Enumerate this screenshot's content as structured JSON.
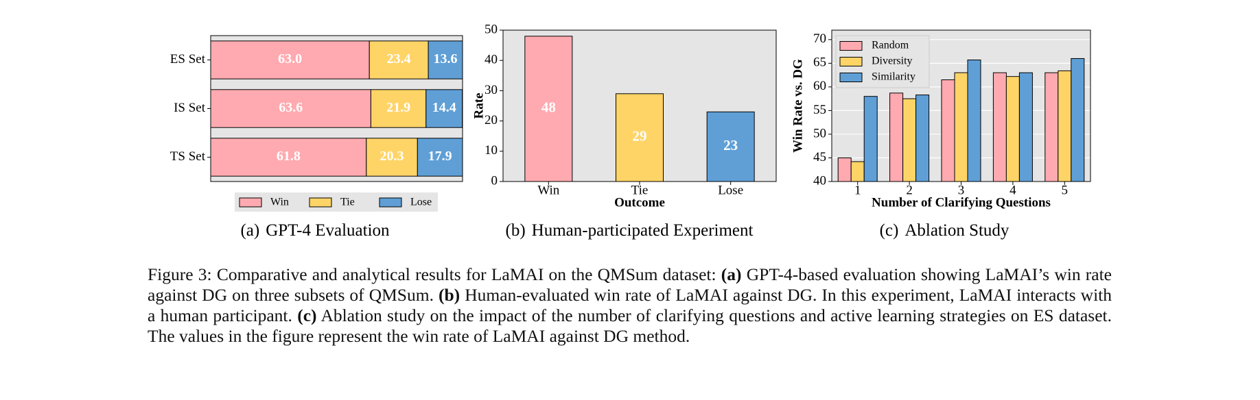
{
  "chart_data": [
    {
      "type": "bar",
      "orientation": "horizontal",
      "stacked": true,
      "label": "(a)",
      "caption": "GPT-4 Evaluation",
      "categories": [
        "ES Set",
        "IS Set",
        "TS Set"
      ],
      "xlim": [
        0,
        100
      ],
      "legend": "bottom",
      "series": [
        {
          "name": "Win",
          "color": "#ffaab0",
          "values": [
            63.0,
            63.6,
            61.8
          ],
          "value_labels": [
            "63.0",
            "63.6",
            "61.8"
          ]
        },
        {
          "name": "Tie",
          "color": "#ffd467",
          "values": [
            23.4,
            21.9,
            20.3
          ],
          "value_labels": [
            "23.4",
            "21.9",
            "20.3"
          ]
        },
        {
          "name": "Lose",
          "color": "#5f9fd6",
          "values": [
            13.6,
            14.4,
            17.9
          ],
          "value_labels": [
            "13.6",
            "14.4",
            "17.9"
          ]
        }
      ]
    },
    {
      "type": "bar",
      "label": "(b)",
      "caption": "Human-participated Experiment",
      "categories": [
        "Win",
        "Tie",
        "Lose"
      ],
      "values": [
        48,
        29,
        23
      ],
      "colors": [
        "#ffaab0",
        "#ffd467",
        "#5f9fd6"
      ],
      "xlabel": "Outcome",
      "ylabel": "Rate",
      "ylim": [
        0,
        50
      ],
      "yticks": [
        0,
        10,
        20,
        30,
        40,
        50
      ],
      "grid": false
    },
    {
      "type": "bar",
      "grouped": true,
      "label": "(c)",
      "caption": "Ablation Study",
      "categories": [
        "1",
        "2",
        "3",
        "4",
        "5"
      ],
      "xlabel": "Number of Clarifying Questions",
      "ylabel": "Win Rate vs. DG",
      "ylim": [
        40,
        72
      ],
      "yticks": [
        40,
        45,
        50,
        55,
        60,
        65,
        70
      ],
      "grid": true,
      "legend": "upper left",
      "series": [
        {
          "name": "Random",
          "color": "#ffaab0",
          "values": [
            45.0,
            58.7,
            61.5,
            63.0,
            63.0
          ]
        },
        {
          "name": "Diversity",
          "color": "#ffd467",
          "values": [
            44.2,
            57.5,
            63.0,
            62.2,
            63.4
          ]
        },
        {
          "name": "Similarity",
          "color": "#5f9fd6",
          "values": [
            58.0,
            58.3,
            65.7,
            63.0,
            66.0
          ]
        }
      ]
    }
  ],
  "caption": [
    {
      "text": "Figure 3: Comparative and analytical results for LaMAI on the QMSum dataset: ",
      "bold": false
    },
    {
      "text": "(a)",
      "bold": true
    },
    {
      "text": " GPT-4-based evaluation showing LaMAI’s win rate against DG on three subsets of QMSum. ",
      "bold": false
    },
    {
      "text": "(b)",
      "bold": true
    },
    {
      "text": " Human-evaluated win rate of LaMAI against DG. In this experiment, LaMAI interacts with a human participant. ",
      "bold": false
    },
    {
      "text": "(c)",
      "bold": true
    },
    {
      "text": " Ablation study on the impact of the number of clarifying questions and active learning strategies on ES dataset. The values in the figure represent the win rate of LaMAI against DG method.",
      "bold": false
    }
  ]
}
